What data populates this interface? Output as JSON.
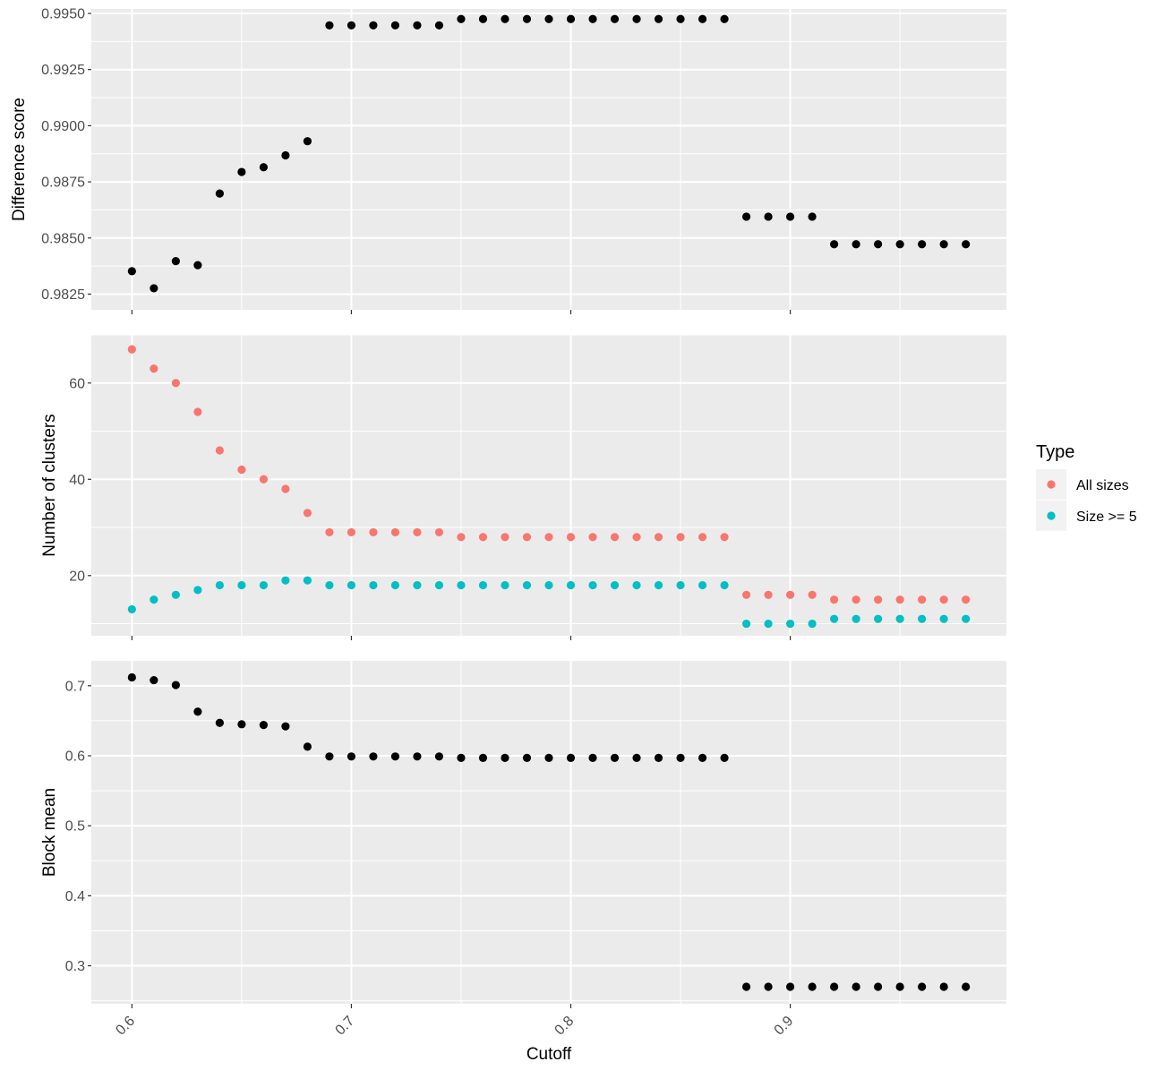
{
  "chart_data": [
    {
      "type": "scatter",
      "ylabel": "Difference score",
      "ylim": [
        0.9818,
        0.9952
      ],
      "yticks": [
        0.9825,
        0.985,
        0.9875,
        0.99,
        0.9925,
        0.995
      ],
      "ytick_labels": [
        "0.9825",
        "0.9850",
        "0.9875",
        "0.9900",
        "0.9925",
        "0.9950"
      ],
      "xlim": [
        0.5815,
        0.9985
      ],
      "grid": true,
      "series": [
        {
          "color": "#000000",
          "points": [
            [
              0.6,
              0.98352
            ],
            [
              0.61,
              0.98276
            ],
            [
              0.62,
              0.98397
            ],
            [
              0.63,
              0.98379
            ],
            [
              0.64,
              0.98698
            ],
            [
              0.65,
              0.98794
            ],
            [
              0.66,
              0.98815
            ],
            [
              0.67,
              0.98868
            ],
            [
              0.68,
              0.98931
            ],
            [
              0.69,
              0.99447
            ],
            [
              0.7,
              0.99447
            ],
            [
              0.71,
              0.99447
            ],
            [
              0.72,
              0.99447
            ],
            [
              0.73,
              0.99447
            ],
            [
              0.74,
              0.99447
            ],
            [
              0.75,
              0.99475
            ],
            [
              0.76,
              0.99475
            ],
            [
              0.77,
              0.99475
            ],
            [
              0.78,
              0.99475
            ],
            [
              0.79,
              0.99475
            ],
            [
              0.8,
              0.99475
            ],
            [
              0.81,
              0.99475
            ],
            [
              0.82,
              0.99475
            ],
            [
              0.83,
              0.99475
            ],
            [
              0.84,
              0.99475
            ],
            [
              0.85,
              0.99475
            ],
            [
              0.86,
              0.99475
            ],
            [
              0.87,
              0.99475
            ],
            [
              0.88,
              0.98595
            ],
            [
              0.89,
              0.98595
            ],
            [
              0.9,
              0.98595
            ],
            [
              0.91,
              0.98595
            ],
            [
              0.92,
              0.98472
            ],
            [
              0.93,
              0.98472
            ],
            [
              0.94,
              0.98472
            ],
            [
              0.95,
              0.98472
            ],
            [
              0.96,
              0.98472
            ],
            [
              0.97,
              0.98472
            ],
            [
              0.98,
              0.98472
            ]
          ]
        }
      ]
    },
    {
      "type": "scatter",
      "ylabel": "Number of clusters",
      "ylim": [
        7.5,
        70
      ],
      "yticks": [
        20,
        40,
        60
      ],
      "ytick_labels": [
        "20",
        "40",
        "60"
      ],
      "xlim": [
        0.5815,
        0.9985
      ],
      "grid": true,
      "legend": {
        "title": "Type",
        "position": "right",
        "entries": [
          {
            "label": "All sizes",
            "color": "#F8766D"
          },
          {
            "label": "Size >= 5",
            "color": "#00BFC4"
          }
        ]
      },
      "series": [
        {
          "name": "All sizes",
          "color": "#F8766D",
          "points": [
            [
              0.6,
              67
            ],
            [
              0.61,
              63
            ],
            [
              0.62,
              60
            ],
            [
              0.63,
              54
            ],
            [
              0.64,
              46
            ],
            [
              0.65,
              42
            ],
            [
              0.66,
              40
            ],
            [
              0.67,
              38
            ],
            [
              0.68,
              33
            ],
            [
              0.69,
              29
            ],
            [
              0.7,
              29
            ],
            [
              0.71,
              29
            ],
            [
              0.72,
              29
            ],
            [
              0.73,
              29
            ],
            [
              0.74,
              29
            ],
            [
              0.75,
              28
            ],
            [
              0.76,
              28
            ],
            [
              0.77,
              28
            ],
            [
              0.78,
              28
            ],
            [
              0.79,
              28
            ],
            [
              0.8,
              28
            ],
            [
              0.81,
              28
            ],
            [
              0.82,
              28
            ],
            [
              0.83,
              28
            ],
            [
              0.84,
              28
            ],
            [
              0.85,
              28
            ],
            [
              0.86,
              28
            ],
            [
              0.87,
              28
            ],
            [
              0.88,
              16
            ],
            [
              0.89,
              16
            ],
            [
              0.9,
              16
            ],
            [
              0.91,
              16
            ],
            [
              0.92,
              15
            ],
            [
              0.93,
              15
            ],
            [
              0.94,
              15
            ],
            [
              0.95,
              15
            ],
            [
              0.96,
              15
            ],
            [
              0.97,
              15
            ],
            [
              0.98,
              15
            ]
          ]
        },
        {
          "name": "Size >= 5",
          "color": "#00BFC4",
          "points": [
            [
              0.6,
              13
            ],
            [
              0.61,
              15
            ],
            [
              0.62,
              16
            ],
            [
              0.63,
              17
            ],
            [
              0.64,
              18
            ],
            [
              0.65,
              18
            ],
            [
              0.66,
              18
            ],
            [
              0.67,
              19
            ],
            [
              0.68,
              19
            ],
            [
              0.69,
              18
            ],
            [
              0.7,
              18
            ],
            [
              0.71,
              18
            ],
            [
              0.72,
              18
            ],
            [
              0.73,
              18
            ],
            [
              0.74,
              18
            ],
            [
              0.75,
              18
            ],
            [
              0.76,
              18
            ],
            [
              0.77,
              18
            ],
            [
              0.78,
              18
            ],
            [
              0.79,
              18
            ],
            [
              0.8,
              18
            ],
            [
              0.81,
              18
            ],
            [
              0.82,
              18
            ],
            [
              0.83,
              18
            ],
            [
              0.84,
              18
            ],
            [
              0.85,
              18
            ],
            [
              0.86,
              18
            ],
            [
              0.87,
              18
            ],
            [
              0.88,
              10
            ],
            [
              0.89,
              10
            ],
            [
              0.9,
              10
            ],
            [
              0.91,
              10
            ],
            [
              0.92,
              11
            ],
            [
              0.93,
              11
            ],
            [
              0.94,
              11
            ],
            [
              0.95,
              11
            ],
            [
              0.96,
              11
            ],
            [
              0.97,
              11
            ],
            [
              0.98,
              11
            ]
          ]
        }
      ]
    },
    {
      "type": "scatter",
      "ylabel": "Block mean",
      "xlabel": "Cutoff",
      "ylim": [
        0.2457,
        0.7356
      ],
      "yticks": [
        0.3,
        0.4,
        0.5,
        0.6,
        0.7
      ],
      "ytick_labels": [
        "0.3",
        "0.4",
        "0.5",
        "0.6",
        "0.7"
      ],
      "xlim": [
        0.5815,
        0.9985
      ],
      "xticks": [
        0.6,
        0.7,
        0.8,
        0.9
      ],
      "xtick_labels": [
        "0.6",
        "0.7",
        "0.8",
        "0.9"
      ],
      "grid": true,
      "series": [
        {
          "color": "#000000",
          "points": [
            [
              0.6,
              0.712
            ],
            [
              0.61,
              0.708
            ],
            [
              0.62,
              0.701
            ],
            [
              0.63,
              0.663
            ],
            [
              0.64,
              0.647
            ],
            [
              0.65,
              0.645
            ],
            [
              0.66,
              0.644
            ],
            [
              0.67,
              0.642
            ],
            [
              0.68,
              0.613
            ],
            [
              0.69,
              0.599
            ],
            [
              0.7,
              0.599
            ],
            [
              0.71,
              0.599
            ],
            [
              0.72,
              0.599
            ],
            [
              0.73,
              0.599
            ],
            [
              0.74,
              0.599
            ],
            [
              0.75,
              0.597
            ],
            [
              0.76,
              0.597
            ],
            [
              0.77,
              0.597
            ],
            [
              0.78,
              0.597
            ],
            [
              0.79,
              0.597
            ],
            [
              0.8,
              0.597
            ],
            [
              0.81,
              0.597
            ],
            [
              0.82,
              0.597
            ],
            [
              0.83,
              0.597
            ],
            [
              0.84,
              0.597
            ],
            [
              0.85,
              0.597
            ],
            [
              0.86,
              0.597
            ],
            [
              0.87,
              0.597
            ],
            [
              0.88,
              0.27
            ],
            [
              0.89,
              0.27
            ],
            [
              0.9,
              0.27
            ],
            [
              0.91,
              0.27
            ],
            [
              0.92,
              0.27
            ],
            [
              0.93,
              0.27
            ],
            [
              0.94,
              0.27
            ],
            [
              0.95,
              0.27
            ],
            [
              0.96,
              0.27
            ],
            [
              0.97,
              0.27
            ],
            [
              0.98,
              0.27
            ]
          ]
        }
      ]
    }
  ]
}
